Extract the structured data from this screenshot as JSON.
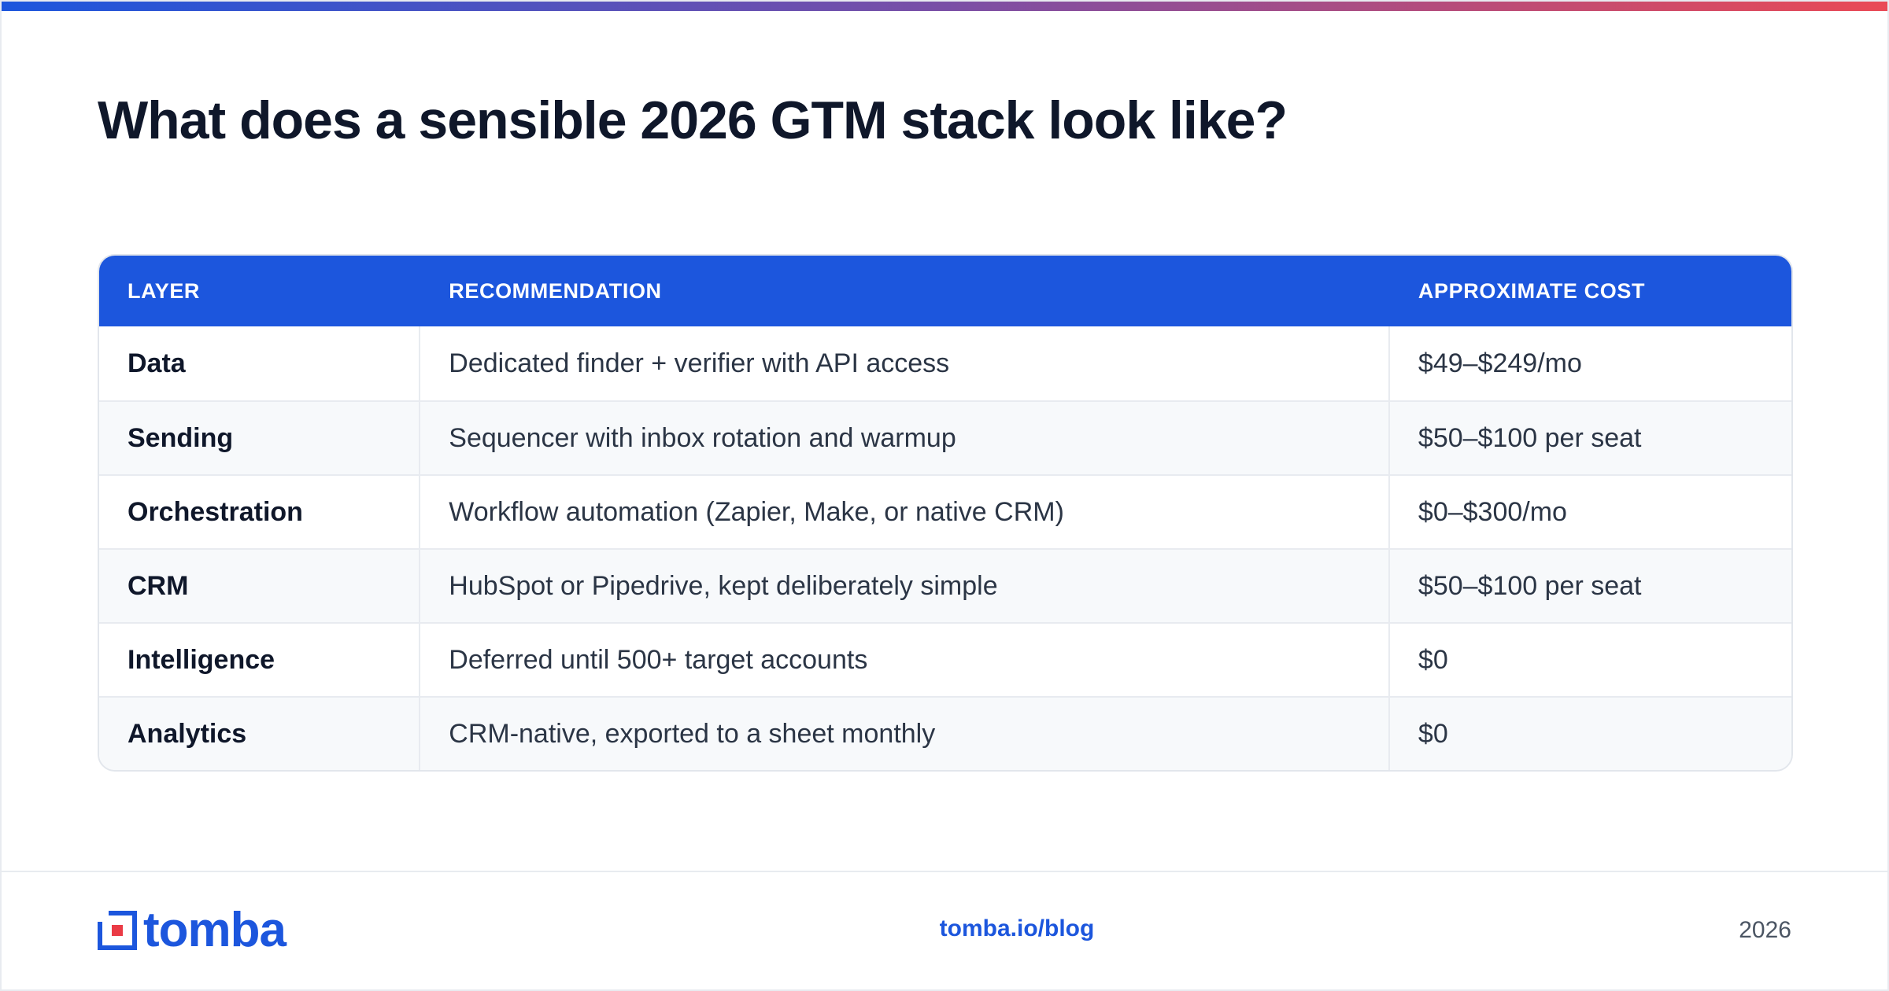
{
  "title": "What does a sensible 2026 GTM stack look like?",
  "colors": {
    "accent": "#1c56dd",
    "gradient_end": "#ea4a55",
    "title": "#0f172a"
  },
  "table": {
    "headers": [
      "LAYER",
      "RECOMMENDATION",
      "APPROXIMATE COST"
    ],
    "rows": [
      {
        "layer": "Data",
        "recommendation": "Dedicated finder + verifier with API access",
        "cost": "$49–$249/mo"
      },
      {
        "layer": "Sending",
        "recommendation": "Sequencer with inbox rotation and warmup",
        "cost": "$50–$100 per seat"
      },
      {
        "layer": "Orchestration",
        "recommendation": "Workflow automation (Zapier, Make, or native CRM)",
        "cost": "$0–$300/mo"
      },
      {
        "layer": "CRM",
        "recommendation": "HubSpot or Pipedrive, kept deliberately simple",
        "cost": "$50–$100 per seat"
      },
      {
        "layer": "Intelligence",
        "recommendation": "Deferred until 500+ target accounts",
        "cost": "$0"
      },
      {
        "layer": "Analytics",
        "recommendation": "CRM-native, exported to a sheet monthly",
        "cost": "$0"
      }
    ]
  },
  "footer": {
    "logo_text": "tomba",
    "logo_icon": "tomba-logo-icon",
    "link": "tomba.io/blog",
    "year": "2026"
  }
}
